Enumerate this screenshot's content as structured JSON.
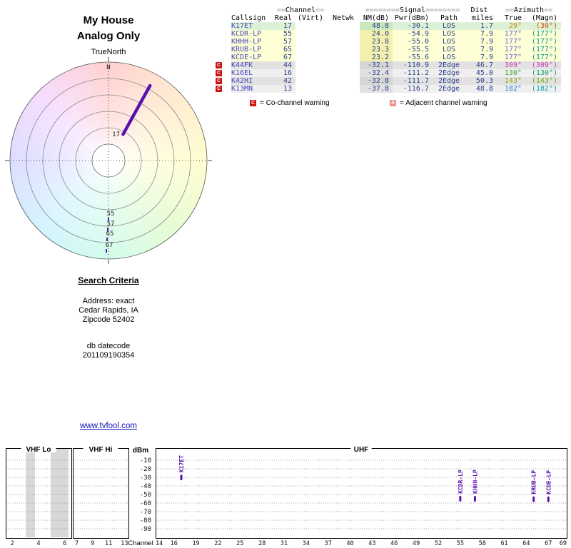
{
  "colors": {
    "accent_purple": "#5a10b0",
    "link_blue": "#1111bb",
    "callsign": "#4747bd",
    "value": "#2b3f8c",
    "badge_co": "#cc1111",
    "badge_adj": "#ee8f8f"
  },
  "header": {
    "title": "My House",
    "subtitle": "Analog Only"
  },
  "radar": {
    "true_north": "TrueNorth",
    "north": "N",
    "pointer_label": "17",
    "south_markers": [
      "55",
      "57",
      "65",
      "67"
    ]
  },
  "table": {
    "groups": {
      "channel_pre": "==",
      "channel": "Channel",
      "channel_post": "==",
      "signal_pre": "========",
      "signal": "Signal",
      "signal_post": "========",
      "dist": "Dist",
      "azimuth_pre": "==",
      "azimuth": "Azimuth",
      "azimuth_post": "=="
    },
    "columns": {
      "callsign": "Callsign",
      "real": "Real",
      "virt": "(Virt)",
      "netwk": "Netwk",
      "nm": "NM(dB)",
      "pwr": "Pwr(dBm)",
      "path": "Path",
      "miles": "miles",
      "true": "True",
      "magn": "(Magn)"
    },
    "rows": [
      {
        "warn": "",
        "callsign": "K17ET",
        "real": "17",
        "virt": "",
        "netwk": "",
        "nm": "48.8",
        "pwr": "-30.1",
        "path": "LOS",
        "miles": "1.7",
        "true": "29°",
        "magn": "(30°)",
        "bg": "#ddf1d6",
        "nm_bg": "#c9e8bc",
        "true_color": "#c8860a",
        "magn_color": "#cc4e00"
      },
      {
        "warn": "",
        "callsign": "KCDR-LP",
        "real": "55",
        "virt": "",
        "netwk": "",
        "nm": "24.0",
        "pwr": "-54.9",
        "path": "LOS",
        "miles": "7.9",
        "true": "177°",
        "magn": "(177°)",
        "bg": "#ffffd6",
        "nm_bg": "#f2f0ac",
        "true_color": "#6a64d8",
        "magn_color": "#0b9a90"
      },
      {
        "warn": "",
        "callsign": "KHHH-LP",
        "real": "57",
        "virt": "",
        "netwk": "",
        "nm": "23.8",
        "pwr": "-55.0",
        "path": "LOS",
        "miles": "7.9",
        "true": "177°",
        "magn": "(177°)",
        "bg": "#ffffd6",
        "nm_bg": "#f2f0ac",
        "true_color": "#6a64d8",
        "magn_color": "#0b9a90"
      },
      {
        "warn": "",
        "callsign": "KRUB-LP",
        "real": "65",
        "virt": "",
        "netwk": "",
        "nm": "23.3",
        "pwr": "-55.5",
        "path": "LOS",
        "miles": "7.9",
        "true": "177°",
        "magn": "(177°)",
        "bg": "#ffffd6",
        "nm_bg": "#f2f0ac",
        "true_color": "#6a64d8",
        "magn_color": "#0b9a90"
      },
      {
        "warn": "",
        "callsign": "KCDE-LP",
        "real": "67",
        "virt": "",
        "netwk": "",
        "nm": "23.2",
        "pwr": "-55.6",
        "path": "LOS",
        "miles": "7.9",
        "true": "177°",
        "magn": "(177°)",
        "bg": "#ffffd6",
        "nm_bg": "#f2f0ac",
        "true_color": "#6a64d8",
        "magn_color": "#0b9a90"
      },
      {
        "warn": "C",
        "callsign": "K44FK",
        "real": "44",
        "virt": "",
        "netwk": "",
        "nm": "-32.1",
        "pwr": "-110.9",
        "path": "2Edge",
        "miles": "46.7",
        "true": "309°",
        "magn": "(309°)",
        "bg": "#e2e2e2",
        "nm_bg": "#d5d5d5",
        "true_color": "#c43fb4",
        "magn_color": "#c43fb4"
      },
      {
        "warn": "C",
        "callsign": "K16EL",
        "real": "16",
        "virt": "",
        "netwk": "",
        "nm": "-32.4",
        "pwr": "-111.2",
        "path": "2Edge",
        "miles": "45.0",
        "true": "130°",
        "magn": "(130°)",
        "bg": "#efefef",
        "nm_bg": "#e1e1e1",
        "true_color": "#3da33d",
        "magn_color": "#16a06a"
      },
      {
        "warn": "C",
        "callsign": "K42HI",
        "real": "42",
        "virt": "",
        "netwk": "",
        "nm": "-32.8",
        "pwr": "-111.7",
        "path": "2Edge",
        "miles": "50.3",
        "true": "143°",
        "magn": "(143°)",
        "bg": "#e2e2e2",
        "nm_bg": "#d5d5d5",
        "true_color": "#9a9a12",
        "magn_color": "#6faa10"
      },
      {
        "warn": "C",
        "callsign": "K13MN",
        "real": "13",
        "virt": "",
        "netwk": "",
        "nm": "-37.8",
        "pwr": "-116.7",
        "path": "2Edge",
        "miles": "48.8",
        "true": "182°",
        "magn": "(182°)",
        "bg": "#efefef",
        "nm_bg": "#e1e1e1",
        "true_color": "#2f7fd0",
        "magn_color": "#11a0ae"
      }
    ]
  },
  "legend": {
    "co_badge": "C",
    "co_text": "= Co-channel warning",
    "adj_badge": "A",
    "adj_text": "= Adjacent channel warning"
  },
  "search": {
    "heading": "Search Criteria",
    "lines": [
      "Address: exact",
      "Cedar Rapids, IA",
      "Zipcode 52402"
    ],
    "db_label": "db datecode",
    "db_value": "201109190354"
  },
  "footer_link": "www.tvfool.com",
  "chart_data": [
    {
      "id": "radar",
      "type": "scatter",
      "subtype": "polar-radar",
      "title": "My House / Analog Only",
      "north_label": "N",
      "points": [
        {
          "label": "17",
          "azimuth_true_deg": 29,
          "nm_db": 48.8
        },
        {
          "label": "55",
          "azimuth_true_deg": 177,
          "nm_db": 24.0
        },
        {
          "label": "57",
          "azimuth_true_deg": 177,
          "nm_db": 23.8
        },
        {
          "label": "65",
          "azimuth_true_deg": 177,
          "nm_db": 23.3
        },
        {
          "label": "67",
          "azimuth_true_deg": 177,
          "nm_db": 23.2
        }
      ]
    },
    {
      "id": "spectrum",
      "type": "scatter",
      "ylabel": "dBm",
      "xlabel": "Channel",
      "ylim": [
        -95,
        -5
      ],
      "yticks": [
        -10,
        -20,
        -30,
        -40,
        -50,
        -60,
        -70,
        -80,
        -90
      ],
      "marker_color": "#5a10b0",
      "sections": [
        {
          "label": "VHF Lo",
          "ch_start": 2,
          "ch_end": 6,
          "ticks": [
            2,
            4,
            6
          ]
        },
        {
          "label": "VHF Hi",
          "ch_start": 7,
          "ch_end": 13,
          "ticks": [
            7,
            9,
            11,
            13
          ]
        },
        {
          "label": "UHF",
          "ch_start": 14,
          "ch_end": 69,
          "ticks": [
            14,
            16,
            19,
            22,
            25,
            28,
            31,
            34,
            37,
            40,
            43,
            46,
            49,
            52,
            55,
            58,
            61,
            64,
            67,
            69
          ]
        }
      ],
      "points": [
        {
          "label": "K17ET",
          "channel": 17,
          "dbm": -30.1
        },
        {
          "label": "KCDR-LP",
          "channel": 55,
          "dbm": -54.9
        },
        {
          "label": "KHHH-LP",
          "channel": 57,
          "dbm": -55.0
        },
        {
          "label": "KRUB-LP",
          "channel": 65,
          "dbm": -55.5
        },
        {
          "label": "KCDE-LP",
          "channel": 67,
          "dbm": -55.6
        }
      ]
    }
  ]
}
